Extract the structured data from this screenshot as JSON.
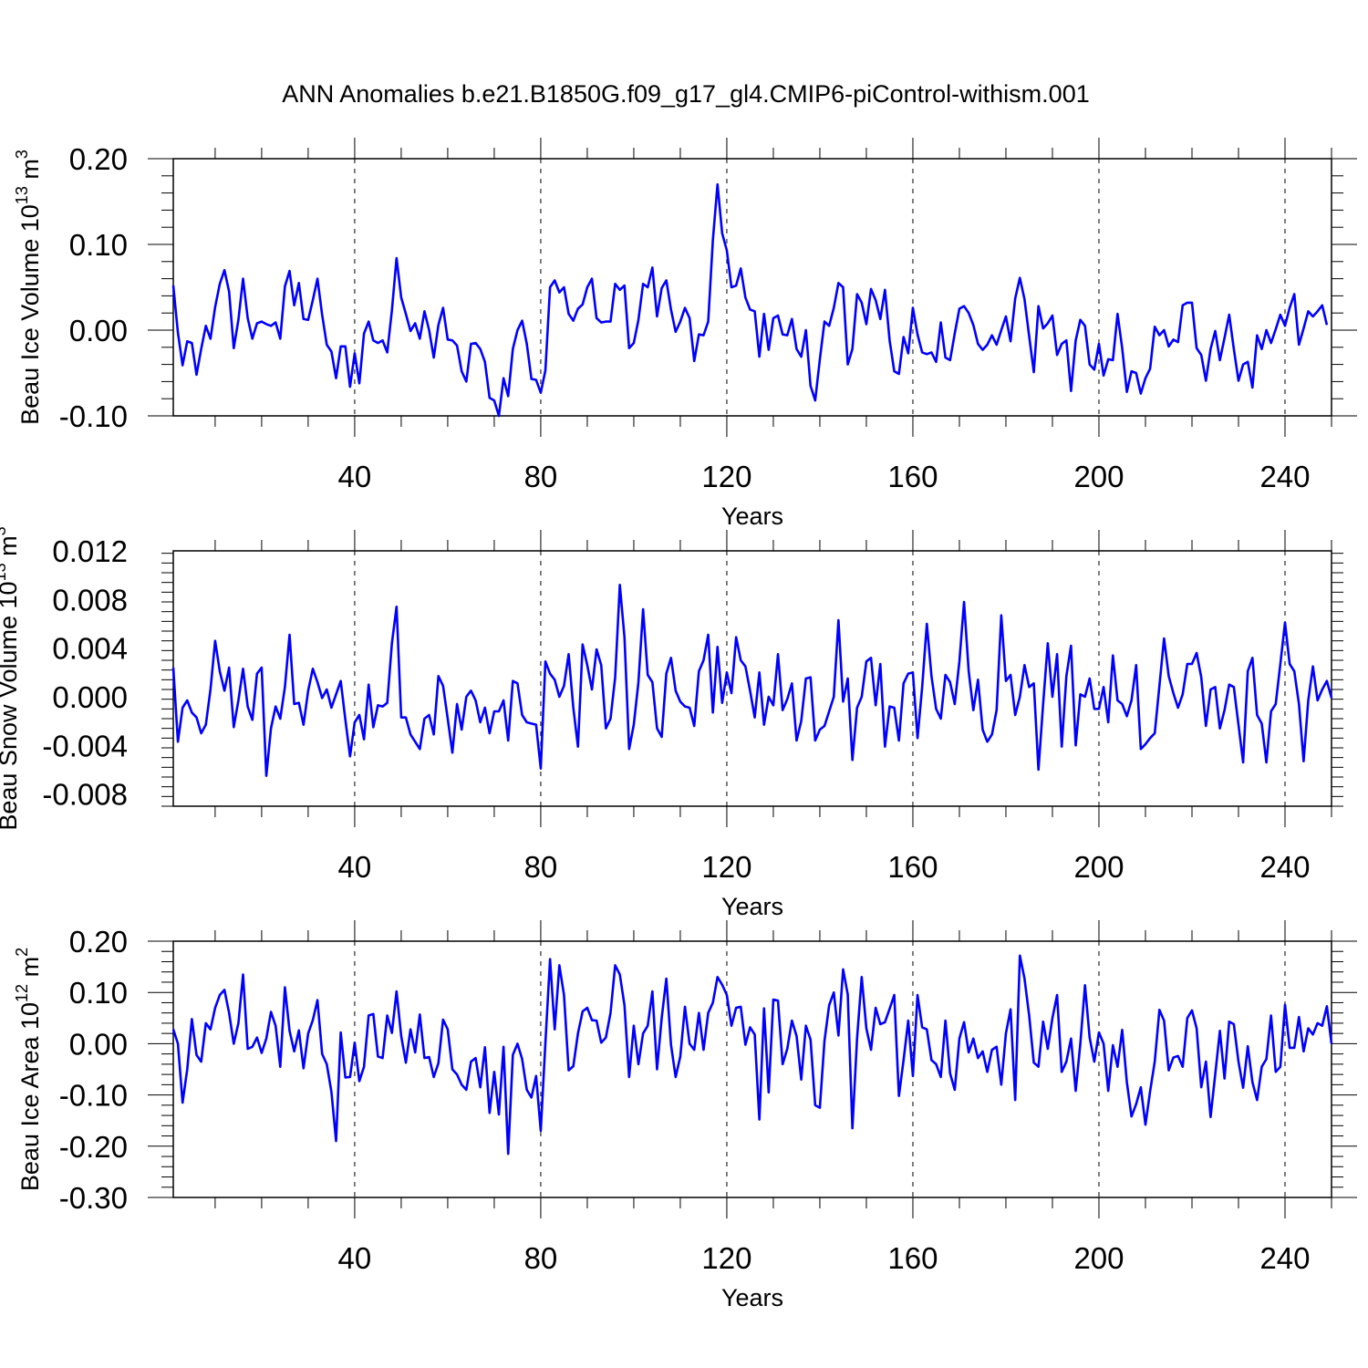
{
  "title": "ANN Anomalies b.e21.B1850G.f09_g17_gl4.CMIP6-piControl-withism.001",
  "line_color": "#0000ff",
  "chart_data": [
    {
      "type": "line",
      "title": "ANN Anomalies b.e21.B1850G.f09_g17_gl4.CMIP6-piControl-withism.001",
      "xlabel": "Years",
      "ylabel_main": "Beau Ice Volume 10",
      "ylabel_exp": "13",
      "ylabel_unit": " m",
      "ylabel_unit_exp": "3",
      "xlim": [
        1,
        250
      ],
      "ylim": [
        -0.1,
        0.2
      ],
      "x_ticks": [
        40,
        80,
        120,
        160,
        200,
        240
      ],
      "x_tick_labels": [
        "40",
        "80",
        "120",
        "160",
        "200",
        "240"
      ],
      "y_ticks": [
        -0.1,
        0.0,
        0.1,
        0.2
      ],
      "y_tick_labels": [
        "-0.10",
        "0.00",
        "0.10",
        "0.20"
      ],
      "grid": "vertical dashed at major x ticks",
      "x_start": 1,
      "series": [
        {
          "name": "Beau Ice Volume",
          "values": [
            0.052,
            -0.003,
            -0.041,
            -0.013,
            -0.015,
            -0.052,
            -0.022,
            0.005,
            -0.01,
            0.027,
            0.054,
            0.07,
            0.045,
            -0.021,
            0.012,
            0.06,
            0.014,
            -0.01,
            0.008,
            0.01,
            0.007,
            0.005,
            0.009,
            -0.01,
            0.051,
            0.069,
            0.029,
            0.055,
            0.013,
            0.012,
            0.035,
            0.06,
            0.018,
            -0.017,
            -0.025,
            -0.056,
            -0.019,
            -0.019,
            -0.066,
            -0.027,
            -0.062,
            -0.004,
            0.01,
            -0.012,
            -0.015,
            -0.012,
            -0.026,
            0.023,
            0.084,
            0.038,
            0.019,
            -0.001,
            0.008,
            -0.01,
            0.022,
            0.0,
            -0.032,
            0.006,
            0.026,
            -0.011,
            -0.012,
            -0.018,
            -0.048,
            -0.06,
            -0.016,
            -0.015,
            -0.022,
            -0.037,
            -0.079,
            -0.082,
            -0.1,
            -0.056,
            -0.077,
            -0.022,
            0.0,
            0.011,
            -0.016,
            -0.057,
            -0.058,
            -0.073,
            -0.047,
            0.05,
            0.058,
            0.044,
            0.05,
            0.019,
            0.011,
            0.025,
            0.03,
            0.05,
            0.06,
            0.014,
            0.009,
            0.01,
            0.01,
            0.054,
            0.047,
            0.052,
            -0.021,
            -0.015,
            0.012,
            0.054,
            0.05,
            0.073,
            0.016,
            0.049,
            0.058,
            0.024,
            -0.002,
            0.01,
            0.026,
            0.014,
            -0.036,
            -0.005,
            -0.006,
            0.01,
            0.105,
            0.17,
            0.113,
            0.093,
            0.05,
            0.052,
            0.072,
            0.038,
            0.024,
            0.022,
            -0.031,
            0.019,
            -0.023,
            0.014,
            0.017,
            -0.005,
            -0.006,
            0.013,
            -0.022,
            -0.031,
            0.0,
            -0.065,
            -0.082,
            -0.034,
            0.01,
            0.005,
            0.026,
            0.055,
            0.05,
            -0.04,
            -0.022,
            0.042,
            0.032,
            0.007,
            0.048,
            0.035,
            0.013,
            0.047,
            -0.012,
            -0.048,
            -0.051,
            -0.008,
            -0.027,
            0.026,
            -0.005,
            -0.026,
            -0.028,
            -0.026,
            -0.037,
            0.009,
            -0.032,
            -0.035,
            -0.004,
            0.025,
            0.028,
            0.02,
            0.006,
            -0.016,
            -0.023,
            -0.017,
            -0.006,
            -0.017,
            0.0,
            0.016,
            -0.013,
            0.037,
            0.061,
            0.036,
            -0.007,
            -0.049,
            0.028,
            0.002,
            0.008,
            0.017,
            -0.029,
            -0.016,
            -0.012,
            -0.071,
            -0.012,
            0.012,
            0.005,
            -0.04,
            -0.046,
            -0.016,
            -0.053,
            -0.034,
            -0.035,
            0.019,
            -0.021,
            -0.072,
            -0.048,
            -0.05,
            -0.074,
            -0.056,
            -0.045,
            0.004,
            -0.006,
            0.0,
            -0.019,
            -0.011,
            -0.014,
            0.029,
            0.032,
            0.032,
            -0.021,
            -0.029,
            -0.059,
            -0.022,
            -0.001,
            -0.035,
            -0.009,
            0.018,
            -0.022,
            -0.059,
            -0.04,
            -0.037,
            -0.067,
            -0.006,
            -0.022,
            0.0,
            -0.015,
            0.001,
            0.018,
            0.005,
            0.026,
            0.042,
            -0.017,
            0.002,
            0.022,
            0.016,
            0.022,
            0.029,
            0.006
          ]
        }
      ]
    },
    {
      "type": "line",
      "xlabel": "Years",
      "ylabel_main": "Beau Snow Volume 10",
      "ylabel_exp": "13",
      "ylabel_unit": " m",
      "ylabel_unit_exp": "3",
      "xlim": [
        1,
        250
      ],
      "ylim": [
        -0.009,
        0.012
      ],
      "x_ticks": [
        40,
        80,
        120,
        160,
        200,
        240
      ],
      "x_tick_labels": [
        "40",
        "80",
        "120",
        "160",
        "200",
        "240"
      ],
      "y_ticks": [
        -0.008,
        -0.004,
        0.0,
        0.004,
        0.008,
        0.012
      ],
      "y_tick_labels": [
        "-0.008",
        "-0.004",
        "0.000",
        "0.004",
        "0.008",
        "0.012"
      ],
      "grid": "vertical dashed at major x ticks",
      "x_start": 1,
      "series": [
        {
          "name": "Beau Snow Volume",
          "values": [
            0.0024,
            -0.0037,
            -0.0009,
            -0.0003,
            -0.0013,
            -0.0017,
            -0.003,
            -0.0023,
            0.0006,
            0.0046,
            0.0021,
            0.0005,
            0.0024,
            -0.0025,
            -0.0003,
            0.0023,
            -0.0008,
            -0.0019,
            0.0019,
            0.0024,
            -0.0065,
            -0.0026,
            -0.0008,
            -0.0018,
            0.0008,
            0.0051,
            -0.0006,
            -0.0005,
            -0.0023,
            0.0005,
            0.0023,
            0.0012,
            -0.0001,
            0.0006,
            -0.0009,
            0.0002,
            0.0013,
            -0.0019,
            -0.0049,
            -0.0021,
            -0.0015,
            -0.0035,
            0.001,
            -0.0025,
            -0.0007,
            -0.0008,
            -0.0005,
            0.0044,
            0.0074,
            -0.0017,
            -0.0017,
            -0.0031,
            -0.0037,
            -0.0043,
            -0.0018,
            -0.0015,
            -0.0031,
            0.0017,
            0.0009,
            -0.0018,
            -0.0046,
            -0.0006,
            -0.0027,
            0.0,
            0.0005,
            -0.0003,
            -0.0021,
            -0.0009,
            -0.003,
            -0.0012,
            -0.0012,
            -0.0003,
            -0.0036,
            0.0013,
            0.0011,
            -0.0015,
            -0.0021,
            -0.0022,
            -0.0023,
            -0.0059,
            0.0029,
            0.0019,
            0.0014,
            0.0,
            0.0009,
            0.0035,
            -0.0009,
            -0.0041,
            0.0043,
            0.0026,
            0.0006,
            0.0039,
            0.0026,
            -0.0026,
            -0.0018,
            0.0016,
            0.0092,
            0.0049,
            -0.0043,
            -0.0023,
            0.0012,
            0.0072,
            0.0018,
            0.0012,
            -0.0026,
            -0.0033,
            0.0019,
            0.0032,
            0.0005,
            -0.0004,
            -0.0008,
            -0.0009,
            -0.0024,
            0.0021,
            0.003,
            0.0051,
            -0.0013,
            0.0041,
            -0.0005,
            0.002,
            0.0003,
            0.0049,
            0.003,
            0.0025,
            0.0005,
            -0.0017,
            0.002,
            -0.0023,
            0.0,
            -0.0007,
            0.0035,
            -0.0011,
            -0.0002,
            0.0011,
            -0.0036,
            -0.002,
            0.0015,
            0.0016,
            -0.0036,
            -0.0027,
            -0.0024,
            -0.0012,
            0.0,
            0.0063,
            -0.0004,
            0.0015,
            -0.0052,
            -0.0009,
            0.0,
            0.0029,
            0.0032,
            -0.0007,
            0.0027,
            -0.0041,
            -0.0008,
            -0.0009,
            -0.0036,
            0.0011,
            0.0019,
            0.002,
            -0.0034,
            0.0008,
            0.006,
            0.0017,
            -0.001,
            -0.0018,
            0.0018,
            0.0012,
            -0.0006,
            0.0029,
            0.0078,
            0.0021,
            -0.0011,
            0.0014,
            -0.0027,
            -0.0037,
            -0.0031,
            -0.0011,
            0.0067,
            0.0013,
            0.0018,
            -0.0015,
            0.0,
            0.0026,
            0.0008,
            0.0011,
            -0.006,
            -0.0006,
            0.0044,
            0.0,
            0.0035,
            -0.0041,
            0.0017,
            0.0042,
            -0.004,
            0.0002,
            0.0,
            0.0015,
            -0.001,
            -0.001,
            0.0008,
            -0.0021,
            0.0034,
            -0.0003,
            -0.0006,
            -0.0016,
            -0.0003,
            0.0026,
            -0.0043,
            -0.0039,
            -0.0034,
            -0.003,
            0.0009,
            0.0048,
            0.0017,
            0.0003,
            -0.0009,
            0.0002,
            0.0027,
            0.0027,
            0.0036,
            0.0016,
            -0.0024,
            0.0006,
            0.0008,
            -0.0026,
            -0.0011,
            0.001,
            0.0008,
            -0.0023,
            -0.0054,
            0.0021,
            0.0032,
            -0.0015,
            -0.0022,
            -0.0054,
            -0.0012,
            -0.0006,
            0.0027,
            0.0061,
            0.0027,
            0.0021,
            -0.0006,
            -0.0053,
            -0.0003,
            0.0025,
            -0.0003,
            0.0006,
            0.0013,
            -0.0001
          ]
        }
      ]
    },
    {
      "type": "line",
      "xlabel": "Years",
      "ylabel_main": "Beau Ice Area 10",
      "ylabel_exp": "12",
      "ylabel_unit": " m",
      "ylabel_unit_exp": "2",
      "xlim": [
        1,
        250
      ],
      "ylim": [
        -0.3,
        0.2
      ],
      "x_ticks": [
        40,
        80,
        120,
        160,
        200,
        240
      ],
      "x_tick_labels": [
        "40",
        "80",
        "120",
        "160",
        "200",
        "240"
      ],
      "y_ticks": [
        -0.3,
        -0.2,
        -0.1,
        0.0,
        0.1,
        0.2
      ],
      "y_tick_labels": [
        "-0.30",
        "-0.20",
        "-0.10",
        "0.00",
        "0.10",
        "0.20"
      ],
      "grid": "vertical dashed at major x ticks",
      "x_start": 1,
      "series": [
        {
          "name": "Beau Ice Area",
          "values": [
            0.028,
            0.0,
            -0.115,
            -0.05,
            0.048,
            -0.022,
            -0.035,
            0.04,
            0.028,
            0.07,
            0.095,
            0.105,
            0.06,
            0.0,
            0.04,
            0.135,
            -0.01,
            -0.006,
            0.012,
            -0.018,
            0.01,
            0.062,
            0.035,
            -0.045,
            0.11,
            0.025,
            -0.015,
            0.026,
            -0.048,
            0.02,
            0.046,
            0.085,
            -0.02,
            -0.04,
            -0.094,
            -0.19,
            0.022,
            -0.066,
            -0.065,
            0.002,
            -0.073,
            -0.045,
            0.055,
            0.058,
            -0.025,
            -0.028,
            0.055,
            0.021,
            0.102,
            0.015,
            -0.037,
            0.028,
            -0.017,
            0.057,
            -0.028,
            -0.026,
            -0.065,
            -0.038,
            0.047,
            0.028,
            -0.05,
            -0.06,
            -0.08,
            -0.09,
            -0.035,
            -0.028,
            -0.085,
            -0.007,
            -0.135,
            -0.055,
            -0.138,
            -0.006,
            -0.215,
            -0.022,
            0.0,
            -0.03,
            -0.09,
            -0.105,
            -0.063,
            -0.17,
            0.002,
            0.165,
            0.028,
            0.153,
            0.095,
            -0.052,
            -0.044,
            0.02,
            0.063,
            0.07,
            0.046,
            0.045,
            0.002,
            0.012,
            0.06,
            0.153,
            0.135,
            0.075,
            -0.065,
            0.035,
            -0.04,
            0.02,
            0.035,
            0.102,
            -0.05,
            0.05,
            0.127,
            -0.002,
            -0.065,
            -0.025,
            0.072,
            0.0,
            -0.012,
            0.06,
            -0.012,
            0.06,
            0.08,
            0.13,
            0.115,
            0.095,
            0.035,
            0.07,
            0.072,
            -0.002,
            0.032,
            0.018,
            -0.148,
            0.069,
            -0.095,
            0.086,
            0.084,
            -0.04,
            -0.01,
            0.045,
            0.015,
            -0.07,
            0.035,
            0.008,
            -0.12,
            -0.125,
            0.006,
            0.075,
            0.1,
            0.016,
            0.145,
            0.096,
            -0.165,
            0.01,
            0.13,
            0.03,
            -0.012,
            0.07,
            0.038,
            0.042,
            0.068,
            0.095,
            -0.102,
            -0.032,
            0.045,
            -0.063,
            0.095,
            0.032,
            0.028,
            -0.032,
            -0.04,
            -0.065,
            0.045,
            -0.058,
            -0.09,
            0.01,
            0.042,
            -0.017,
            0.01,
            -0.028,
            -0.015,
            -0.055,
            -0.012,
            -0.006,
            -0.08,
            0.02,
            0.067,
            -0.11,
            0.172,
            0.127,
            0.055,
            -0.037,
            -0.045,
            0.043,
            -0.01,
            0.05,
            0.095,
            -0.055,
            -0.035,
            0.01,
            -0.092,
            0.0,
            0.114,
            0.012,
            -0.035,
            0.022,
            0.0,
            -0.092,
            -0.003,
            -0.045,
            0.027,
            -0.075,
            -0.142,
            -0.118,
            -0.085,
            -0.158,
            -0.093,
            -0.035,
            0.066,
            0.045,
            -0.052,
            -0.027,
            -0.024,
            -0.045,
            0.05,
            0.065,
            0.03,
            -0.085,
            -0.035,
            -0.143,
            -0.06,
            0.025,
            -0.068,
            0.043,
            0.038,
            -0.035,
            -0.086,
            -0.005,
            -0.075,
            -0.11,
            -0.045,
            -0.03,
            0.055,
            -0.055,
            -0.045,
            0.076,
            -0.008,
            -0.008,
            0.052,
            -0.015,
            0.03,
            0.018,
            0.04,
            0.035,
            0.073,
            0.0
          ]
        }
      ]
    }
  ]
}
